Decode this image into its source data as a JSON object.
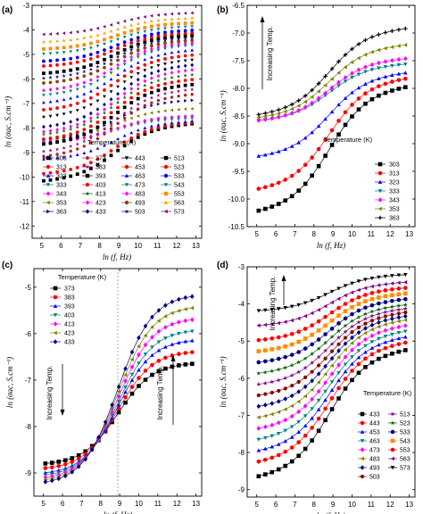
{
  "chart_data": [
    {
      "panel": "(a)",
      "type": "scatter",
      "xlabel": "ln (f, Hz)",
      "ylabel": "ln (σac, S.cm⁻¹)",
      "xlim": [
        4.5,
        13.3
      ],
      "ylim": [
        -12.5,
        -3
      ],
      "xticks": [
        5,
        6,
        7,
        8,
        9,
        10,
        11,
        12,
        13
      ],
      "yticks": [
        -12,
        -11,
        -10,
        -9,
        -8,
        -7,
        -6,
        -5,
        -4,
        -3
      ],
      "legend_title": "Temperature (K)",
      "legend_placement": "bottom",
      "series": [
        {
          "name": "303",
          "color": "#000000",
          "marker": "square",
          "low": -10.2,
          "high": -7.8
        },
        {
          "name": "313",
          "color": "#ff0000",
          "marker": "circle",
          "low": -9.9,
          "high": -7.75
        },
        {
          "name": "323",
          "color": "#0000ff",
          "marker": "triangle-up",
          "low": -9.3,
          "high": -7.7
        },
        {
          "name": "333",
          "color": "#008080",
          "marker": "triangle-down",
          "low": -8.6,
          "high": -7.6
        },
        {
          "name": "343",
          "color": "#ff00ff",
          "marker": "diamond",
          "low": -8.6,
          "high": -7.5
        },
        {
          "name": "353",
          "color": "#808000",
          "marker": "triangle-left",
          "low": -8.5,
          "high": -7.2
        },
        {
          "name": "363",
          "color": "#000080",
          "marker": "triangle-right",
          "low": -8.5,
          "high": -6.85
        },
        {
          "name": "373",
          "color": "#b22222",
          "marker": "hexagon",
          "low": -9.2,
          "high": -6.6
        },
        {
          "name": "383",
          "color": "#8b008b",
          "marker": "star",
          "low": -9.0,
          "high": -6.4
        },
        {
          "name": "393",
          "color": "#000000",
          "marker": "square",
          "low": -8.7,
          "high": -6.2
        },
        {
          "name": "403",
          "color": "#ff0000",
          "marker": "circle",
          "low": -8.5,
          "high": -6.0
        },
        {
          "name": "413",
          "color": "#006400",
          "marker": "star",
          "low": -8.3,
          "high": -5.8
        },
        {
          "name": "423",
          "color": "#ff00ff",
          "marker": "diamond",
          "low": -8.2,
          "high": -5.6
        },
        {
          "name": "433",
          "color": "#000080",
          "marker": "diamond",
          "low": -8.0,
          "high": -5.4
        },
        {
          "name": "443",
          "color": "#000000",
          "marker": "triangle-down",
          "low": -7.6,
          "high": -5.2
        },
        {
          "name": "453",
          "color": "#ff0000",
          "marker": "circle",
          "low": -7.3,
          "high": -5.0
        },
        {
          "name": "463",
          "color": "#0000ff",
          "marker": "triangle-up",
          "low": -7.0,
          "high": -4.8
        },
        {
          "name": "473",
          "color": "#008080",
          "marker": "triangle-down",
          "low": -6.7,
          "high": -4.6
        },
        {
          "name": "483",
          "color": "#ff00ff",
          "marker": "diamond",
          "low": -6.5,
          "high": -4.5
        },
        {
          "name": "493",
          "color": "#8b4513",
          "marker": "circle",
          "low": -6.2,
          "high": -4.4
        },
        {
          "name": "503",
          "color": "#000080",
          "marker": "star",
          "low": -6.0,
          "high": -4.3
        },
        {
          "name": "513",
          "color": "#000000",
          "marker": "square",
          "low": -5.8,
          "high": -4.2
        },
        {
          "name": "523",
          "color": "#ff0000",
          "marker": "circle",
          "low": -5.5,
          "high": -4.1
        },
        {
          "name": "533",
          "color": "#0000ff",
          "marker": "circle",
          "low": -5.3,
          "high": -4.0
        },
        {
          "name": "543",
          "color": "#008080",
          "marker": "triangle-down",
          "low": -5.0,
          "high": -3.85
        },
        {
          "name": "553",
          "color": "#ff8c00",
          "marker": "square",
          "low": -4.8,
          "high": -3.7
        },
        {
          "name": "563",
          "color": "#ffa500",
          "marker": "triangle-up",
          "low": -4.5,
          "high": -3.5
        },
        {
          "name": "573",
          "color": "#800080",
          "marker": "triangle-left",
          "low": -4.2,
          "high": -3.3
        }
      ]
    },
    {
      "panel": "(b)",
      "type": "line",
      "xlabel": "ln (f, Hz)",
      "ylabel": "ln (σac, S.cm⁻¹)",
      "xlim": [
        4.5,
        13.3
      ],
      "ylim": [
        -10.5,
        -6.5
      ],
      "xticks": [
        5,
        6,
        7,
        8,
        9,
        10,
        11,
        12,
        13
      ],
      "yticks": [
        -10.5,
        -10.0,
        -9.5,
        -9.0,
        -8.5,
        -8.0,
        -7.5,
        -7.0,
        -6.5
      ],
      "legend_title": "Temperature (K)",
      "legend_placement": "bottom-right",
      "annotation": "Increasing Temp.",
      "series": [
        {
          "name": "303",
          "color": "#000000",
          "marker": "square",
          "low": -10.25,
          "high": -7.95
        },
        {
          "name": "313",
          "color": "#ff0000",
          "marker": "circle",
          "low": -9.85,
          "high": -7.8
        },
        {
          "name": "323",
          "color": "#0000ff",
          "marker": "triangle-up",
          "low": -9.25,
          "high": -7.7
        },
        {
          "name": "333",
          "color": "#008080",
          "marker": "triangle-down",
          "low": -8.6,
          "high": -7.55
        },
        {
          "name": "343",
          "color": "#ff00ff",
          "marker": "diamond",
          "low": -8.6,
          "high": -7.45
        },
        {
          "name": "353",
          "color": "#808000",
          "marker": "triangle-left",
          "low": -8.55,
          "high": -7.2
        },
        {
          "name": "363",
          "color": "#000000",
          "marker": "plus",
          "low": -8.5,
          "high": -6.9
        }
      ]
    },
    {
      "panel": "(c)",
      "type": "line",
      "xlabel": "ln (f, Hz)",
      "ylabel": "ln (σac, S.cm⁻¹)",
      "xlim": [
        4.5,
        13.3
      ],
      "ylim": [
        -9.5,
        -4.6
      ],
      "xticks": [
        5,
        6,
        7,
        8,
        9,
        10,
        11,
        12,
        13
      ],
      "yticks": [
        -9,
        -8,
        -7,
        -6,
        -5
      ],
      "legend_title": "Temperature (K)",
      "legend_placement": "top-left",
      "annotations": [
        "Increasing Temp.",
        "Increasing Temp."
      ],
      "crossover_x": 8.9,
      "series": [
        {
          "name": "373",
          "color": "#000000",
          "marker": "square",
          "low": -8.8,
          "high": -6.65
        },
        {
          "name": "383",
          "color": "#ff0000",
          "marker": "circle",
          "low": -8.9,
          "high": -6.4
        },
        {
          "name": "393",
          "color": "#0000ff",
          "marker": "triangle-up",
          "low": -9.0,
          "high": -6.15
        },
        {
          "name": "403",
          "color": "#008080",
          "marker": "triangle-down",
          "low": -9.05,
          "high": -5.95
        },
        {
          "name": "413",
          "color": "#ff00ff",
          "marker": "diamond",
          "low": -9.1,
          "high": -5.7
        },
        {
          "name": "423",
          "color": "#808000",
          "marker": "triangle-left",
          "low": -9.15,
          "high": -5.45
        },
        {
          "name": "433",
          "color": "#000080",
          "marker": "diamond",
          "low": -9.2,
          "high": -5.2
        }
      ]
    },
    {
      "panel": "(d)",
      "type": "line",
      "xlabel": "ln (f, Hz)",
      "ylabel": "ln (σac, S.cm⁻¹)",
      "xlim": [
        4.5,
        13.3
      ],
      "ylim": [
        -9.2,
        -3
      ],
      "xticks": [
        5,
        6,
        7,
        8,
        9,
        10,
        11,
        12,
        13
      ],
      "yticks": [
        -9,
        -8,
        -7,
        -6,
        -5,
        -4,
        -3
      ],
      "legend_title": "Temperature (K)",
      "legend_placement": "bottom-right",
      "annotation": "Increasing Temp.",
      "series": [
        {
          "name": "433",
          "color": "#000000",
          "marker": "square",
          "low": -8.7,
          "high": -5.2
        },
        {
          "name": "443",
          "color": "#ff0000",
          "marker": "circle",
          "low": -8.3,
          "high": -5.0
        },
        {
          "name": "453",
          "color": "#0000ff",
          "marker": "triangle-up",
          "low": -8.0,
          "high": -4.85
        },
        {
          "name": "463",
          "color": "#008080",
          "marker": "triangle-down",
          "low": -7.7,
          "high": -4.7
        },
        {
          "name": "473",
          "color": "#ff00ff",
          "marker": "diamond",
          "low": -7.4,
          "high": -4.55
        },
        {
          "name": "483",
          "color": "#808000",
          "marker": "triangle-left",
          "low": -7.1,
          "high": -4.4
        },
        {
          "name": "493",
          "color": "#000080",
          "marker": "diamond",
          "low": -6.8,
          "high": -4.3
        },
        {
          "name": "503",
          "color": "#8b0000",
          "marker": "hexagon",
          "low": -6.5,
          "high": -4.2
        },
        {
          "name": "513",
          "color": "#800080",
          "marker": "star",
          "low": -6.2,
          "high": -4.1
        },
        {
          "name": "523",
          "color": "#006400",
          "marker": "star",
          "low": -5.9,
          "high": -4.0
        },
        {
          "name": "533",
          "color": "#000080",
          "marker": "circle",
          "low": -5.6,
          "high": -3.85
        },
        {
          "name": "543",
          "color": "#ff8c00",
          "marker": "square",
          "low": -5.3,
          "high": -3.7
        },
        {
          "name": "553",
          "color": "#ff0000",
          "marker": "circle",
          "low": -5.0,
          "high": -3.55
        },
        {
          "name": "563",
          "color": "#800080",
          "marker": "triangle-left",
          "low": -4.6,
          "high": -3.4
        },
        {
          "name": "573",
          "color": "#000000",
          "marker": "triangle-down",
          "low": -4.2,
          "high": -3.2
        }
      ]
    }
  ]
}
